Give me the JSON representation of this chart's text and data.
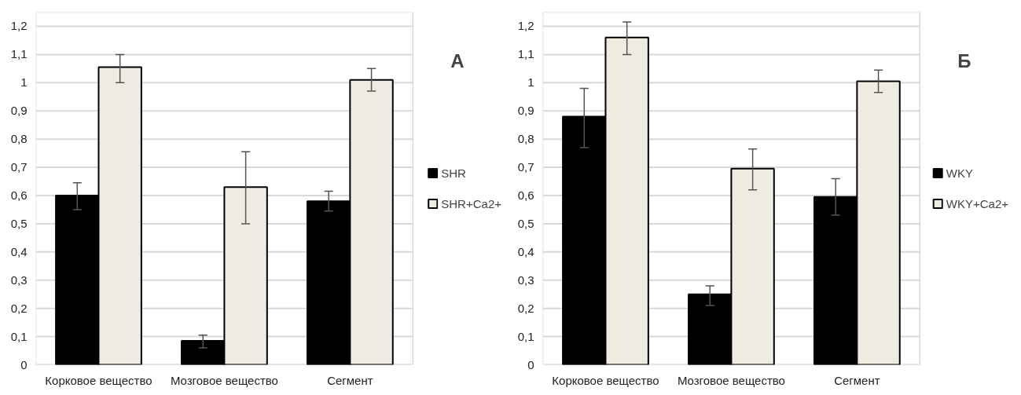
{
  "chart_data": [
    {
      "type": "bar",
      "categories": [
        "Корковое вещество",
        "Мозговое вещество",
        "Сегмент"
      ],
      "series": [
        {
          "name": "SHR",
          "color": "#000000",
          "values": [
            0.6,
            0.085,
            0.58
          ],
          "errors": [
            [
              0.55,
              0.645
            ],
            [
              0.06,
              0.105
            ],
            [
              0.545,
              0.615
            ]
          ]
        },
        {
          "name": "SHR+Ca2+",
          "color": "#eeece1",
          "values": [
            1.055,
            0.63,
            1.01
          ],
          "errors": [
            [
              1.0,
              1.1
            ],
            [
              0.5,
              0.755
            ],
            [
              0.97,
              1.05
            ]
          ]
        }
      ],
      "ylim": [
        0,
        1.25
      ],
      "yticks": [
        0,
        {
          "value": 0.1,
          "label": "0,1"
        },
        {
          "value": 0.2,
          "label": "0,2"
        },
        {
          "value": 0.3,
          "label": "0,3"
        },
        {
          "value": 0.4,
          "label": "0,4"
        },
        {
          "value": 0.5,
          "label": "0,5"
        },
        {
          "value": 0.6,
          "label": "0,6"
        },
        {
          "value": 0.7,
          "label": "0,7"
        },
        {
          "value": 0.8,
          "label": "0,8"
        },
        {
          "value": 0.9,
          "label": "0,9"
        },
        1,
        {
          "value": 1.1,
          "label": "1,1"
        },
        {
          "value": 1.2,
          "label": "1,2"
        }
      ],
      "annotations": [
        "А"
      ],
      "grid": "y",
      "legend": "right"
    },
    {
      "type": "bar",
      "categories": [
        "Корковое вещество",
        "Мозговое вещество",
        "Сегмент"
      ],
      "series": [
        {
          "name": "WKY",
          "color": "#000000",
          "values": [
            0.88,
            0.25,
            0.595
          ],
          "errors": [
            [
              0.77,
              0.98
            ],
            [
              0.21,
              0.28
            ],
            [
              0.53,
              0.66
            ]
          ]
        },
        {
          "name": "WKY+Ca2+",
          "color": "#eeece1",
          "values": [
            1.16,
            0.695,
            1.005
          ],
          "errors": [
            [
              1.1,
              1.215
            ],
            [
              0.62,
              0.765
            ],
            [
              0.965,
              1.045
            ]
          ]
        }
      ],
      "ylim": [
        0,
        1.25
      ],
      "yticks": [
        0,
        {
          "value": 0.1,
          "label": "0,1"
        },
        {
          "value": 0.2,
          "label": "0,2"
        },
        {
          "value": 0.3,
          "label": "0,3"
        },
        {
          "value": 0.4,
          "label": "0,4"
        },
        {
          "value": 0.5,
          "label": "0,5"
        },
        {
          "value": 0.6,
          "label": "0,6"
        },
        {
          "value": 0.7,
          "label": "0,7"
        },
        {
          "value": 0.8,
          "label": "0,8"
        },
        {
          "value": 0.9,
          "label": "0,9"
        },
        1,
        {
          "value": 1.1,
          "label": "1,1"
        },
        {
          "value": 1.2,
          "label": "1,2"
        }
      ],
      "annotations": [
        "Б"
      ],
      "grid": "y",
      "legend": "right"
    }
  ]
}
